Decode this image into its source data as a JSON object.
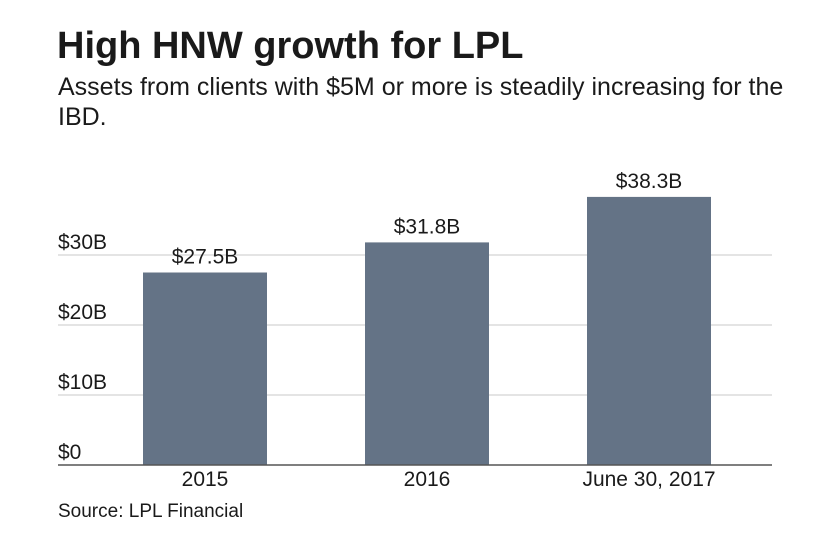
{
  "header": {
    "title": "High HNW growth for LPL",
    "subtitle": "Assets from clients with $5M or more is steadily increasing for the IBD."
  },
  "footer": {
    "source": "Source: LPL Financial"
  },
  "colors": {
    "bar": "#647386",
    "grid": "#c8c8c8",
    "axis": "#555555",
    "text": "#1a1a1a"
  },
  "chart_data": {
    "type": "bar",
    "categories": [
      "2015",
      "2016",
      "June 30, 2017"
    ],
    "values": [
      27.5,
      31.8,
      38.3
    ],
    "data_labels": [
      "$27.5B",
      "$31.8B",
      "$38.3B"
    ],
    "ylim": [
      0,
      40
    ],
    "yticks": [
      0,
      10,
      20,
      30
    ],
    "ytick_labels": [
      "$0",
      "$10B",
      "$20B",
      "$30B"
    ],
    "grid": true,
    "legend": "none",
    "xlabel": "",
    "ylabel": ""
  }
}
